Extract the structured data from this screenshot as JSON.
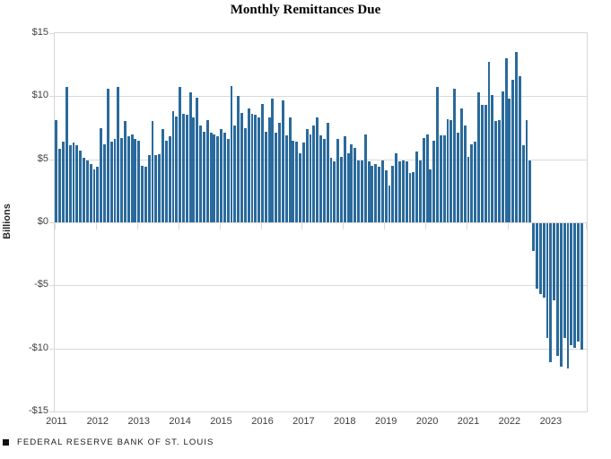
{
  "chart_data": {
    "type": "bar",
    "title": "Monthly Remittances Due",
    "ylabel": "Billions",
    "ylim": [
      -15,
      15
    ],
    "ytick_labels": [
      "$15",
      "$10",
      "$5",
      "$0",
      "-$5",
      "-$10",
      "-$15"
    ],
    "ytick_values": [
      15,
      10,
      5,
      0,
      -5,
      -10,
      -15
    ],
    "grid": "horizontal",
    "bar_color": "#2a6a9c",
    "gridline_color": "#d9d9d9",
    "x_start": "2011-01",
    "x_end": "2023-10",
    "trailing_empty_months": 1,
    "year_labels": [
      "2011",
      "2012",
      "2013",
      "2014",
      "2015",
      "2016",
      "2017",
      "2018",
      "2019",
      "2020",
      "2021",
      "2022",
      "2023"
    ],
    "values": [
      8.1,
      5.8,
      6.4,
      10.7,
      6.1,
      6.3,
      6.1,
      5.7,
      5.1,
      4.9,
      4.6,
      4.2,
      4.4,
      7.5,
      6.2,
      10.6,
      6.4,
      6.6,
      10.7,
      6.7,
      8.0,
      6.8,
      7.0,
      6.6,
      6.5,
      4.5,
      4.4,
      5.3,
      8.0,
      5.3,
      5.4,
      7.4,
      6.5,
      6.8,
      8.8,
      8.4,
      10.7,
      8.6,
      8.5,
      10.3,
      8.3,
      9.9,
      7.7,
      7.2,
      8.1,
      7.1,
      7.0,
      6.8,
      7.4,
      7.1,
      6.6,
      10.8,
      7.7,
      10.0,
      8.7,
      7.5,
      9.0,
      8.6,
      8.5,
      8.3,
      9.4,
      7.2,
      8.3,
      9.8,
      7.1,
      7.9,
      9.7,
      6.9,
      8.3,
      6.5,
      6.4,
      5.5,
      6.3,
      7.4,
      7.0,
      7.7,
      8.3,
      6.9,
      6.6,
      7.9,
      5.1,
      4.8,
      6.6,
      5.2,
      6.8,
      5.5,
      6.2,
      5.9,
      4.9,
      4.9,
      7.0,
      4.8,
      4.5,
      4.6,
      4.4,
      4.9,
      4.1,
      2.9,
      4.5,
      5.5,
      4.8,
      4.9,
      4.8,
      3.9,
      4.0,
      5.6,
      4.9,
      6.7,
      7.0,
      4.2,
      6.5,
      10.7,
      6.9,
      6.9,
      8.2,
      8.1,
      10.6,
      7.1,
      9.0,
      7.7,
      5.2,
      6.2,
      6.4,
      10.3,
      9.3,
      9.3,
      12.7,
      10.1,
      8.0,
      8.1,
      10.4,
      13.0,
      9.8,
      11.3,
      13.5,
      11.6,
      6.1,
      8.1,
      4.9,
      -2.2,
      -5.2,
      -5.6,
      -5.9,
      -9.1,
      -11.0,
      -6.1,
      -10.5,
      -11.4,
      -9.1,
      -11.5,
      -9.7,
      -9.9,
      -9.4,
      -10.0
    ]
  },
  "footer": {
    "logo": "black-square",
    "text": "FEDERAL RESERVE BANK OF ST. LOUIS"
  }
}
